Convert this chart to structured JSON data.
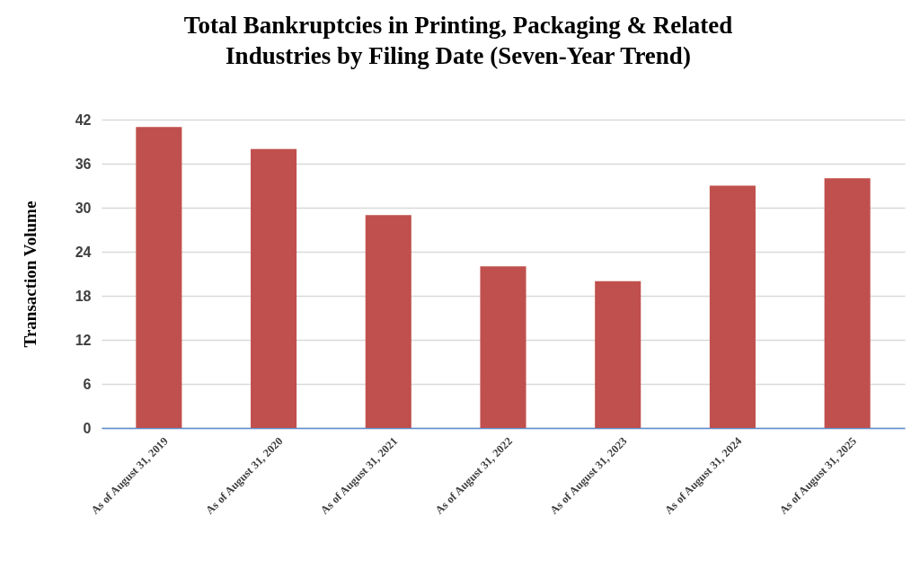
{
  "chart_data": {
    "type": "bar",
    "title": "Total Bankruptcies in Printing, Packaging & Related\nIndustries by Filing Date (Seven-Year Trend)",
    "ylabel": "Transaction Volume",
    "categories": [
      "As of August 31, 2019",
      "As of August 31, 2020",
      "As of August 31, 2021",
      "As of August 31, 2022",
      "As of August 31, 2023",
      "As of August 31, 2024",
      "As of August 31, 2025"
    ],
    "values": [
      41,
      38,
      29,
      22,
      20,
      33,
      34
    ],
    "color": "#c0504d",
    "ylim": [
      0,
      42
    ],
    "yticks": [
      0,
      6,
      12,
      18,
      24,
      30,
      36,
      42
    ],
    "grid": "y"
  }
}
